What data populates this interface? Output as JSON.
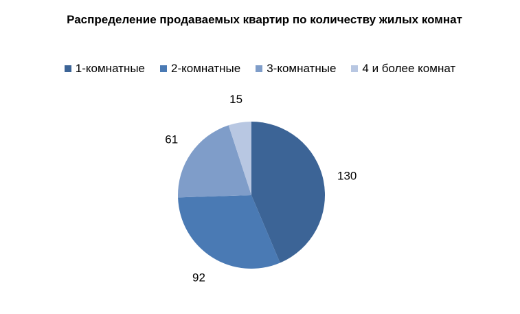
{
  "chart_data": {
    "type": "pie",
    "title": "Распределение продаваемых квартир по количеству жилых комнат",
    "categories": [
      "1-комнатные",
      "2-комнатные",
      "3-комнатные",
      "4 и более комнат"
    ],
    "values": [
      130,
      92,
      61,
      15
    ],
    "colors": [
      "#3C6496",
      "#4A7AB4",
      "#7F9DC9",
      "#B8C7E2"
    ],
    "legend_position": "top",
    "start_angle_deg": 0,
    "direction": "clockwise"
  }
}
